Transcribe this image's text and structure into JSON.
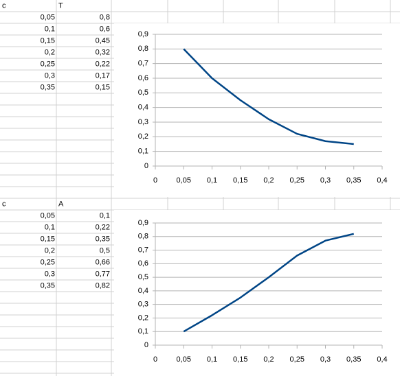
{
  "sheet": {
    "tables": [
      {
        "headers": [
          "c",
          "T"
        ],
        "rows": [
          [
            "0,05",
            "0,8"
          ],
          [
            "0,1",
            "0,6"
          ],
          [
            "0,15",
            "0,45"
          ],
          [
            "0,2",
            "0,32"
          ],
          [
            "0,25",
            "0,22"
          ],
          [
            "0,3",
            "0,17"
          ],
          [
            "0,35",
            "0,15"
          ]
        ]
      },
      {
        "headers": [
          "c",
          "A"
        ],
        "rows": [
          [
            "0,05",
            "0,1"
          ],
          [
            "0,1",
            "0,22"
          ],
          [
            "0,15",
            "0,35"
          ],
          [
            "0,2",
            "0,5"
          ],
          [
            "0,25",
            "0,66"
          ],
          [
            "0,3",
            "0,77"
          ],
          [
            "0,35",
            "0,82"
          ]
        ]
      }
    ]
  },
  "chart_data": [
    {
      "type": "line",
      "x": [
        0.05,
        0.1,
        0.15,
        0.2,
        0.25,
        0.3,
        0.35
      ],
      "series": [
        {
          "color": "#004586",
          "values": [
            0.8,
            0.6,
            0.45,
            0.32,
            0.22,
            0.17,
            0.15
          ]
        }
      ],
      "xlim": [
        0,
        0.4
      ],
      "xticks": [
        0,
        {
          "value": 0.05,
          "label": "0,05"
        },
        {
          "value": 0.1,
          "label": "0,1"
        },
        {
          "value": 0.15,
          "label": "0,15"
        },
        {
          "value": 0.2,
          "label": "0,2"
        },
        {
          "value": 0.25,
          "label": "0,25"
        },
        {
          "value": 0.3,
          "label": "0,3"
        },
        {
          "value": 0.35,
          "label": "0,35"
        },
        {
          "value": 0.4,
          "label": "0,4"
        }
      ],
      "ylim": [
        0,
        0.9
      ],
      "yticks": [
        0,
        {
          "value": 0.1,
          "label": "0,1"
        },
        {
          "value": 0.2,
          "label": "0,2"
        },
        {
          "value": 0.3,
          "label": "0,3"
        },
        {
          "value": 0.4,
          "label": "0,4"
        },
        {
          "value": 0.5,
          "label": "0,5"
        },
        {
          "value": 0.6,
          "label": "0,6"
        },
        {
          "value": 0.7,
          "label": "0,7"
        },
        {
          "value": 0.8,
          "label": "0,8"
        },
        {
          "value": 0.9,
          "label": "0,9"
        }
      ],
      "grid": true
    },
    {
      "type": "line",
      "x": [
        0.05,
        0.1,
        0.15,
        0.2,
        0.25,
        0.3,
        0.35
      ],
      "series": [
        {
          "color": "#004586",
          "values": [
            0.1,
            0.22,
            0.35,
            0.5,
            0.66,
            0.77,
            0.82
          ]
        }
      ],
      "xlim": [
        0,
        0.4
      ],
      "xticks": [
        0,
        {
          "value": 0.05,
          "label": "0,05"
        },
        {
          "value": 0.1,
          "label": "0,1"
        },
        {
          "value": 0.15,
          "label": "0,15"
        },
        {
          "value": 0.2,
          "label": "0,2"
        },
        {
          "value": 0.25,
          "label": "0,25"
        },
        {
          "value": 0.3,
          "label": "0,3"
        },
        {
          "value": 0.35,
          "label": "0,35"
        },
        {
          "value": 0.4,
          "label": "0,4"
        }
      ],
      "ylim": [
        0,
        0.9
      ],
      "yticks": [
        0,
        {
          "value": 0.1,
          "label": "0,1"
        },
        {
          "value": 0.2,
          "label": "0,2"
        },
        {
          "value": 0.3,
          "label": "0,3"
        },
        {
          "value": 0.4,
          "label": "0,4"
        },
        {
          "value": 0.5,
          "label": "0,5"
        },
        {
          "value": 0.6,
          "label": "0,6"
        },
        {
          "value": 0.7,
          "label": "0,7"
        },
        {
          "value": 0.8,
          "label": "0,8"
        },
        {
          "value": 0.9,
          "label": "0,9"
        }
      ],
      "grid": true
    }
  ]
}
